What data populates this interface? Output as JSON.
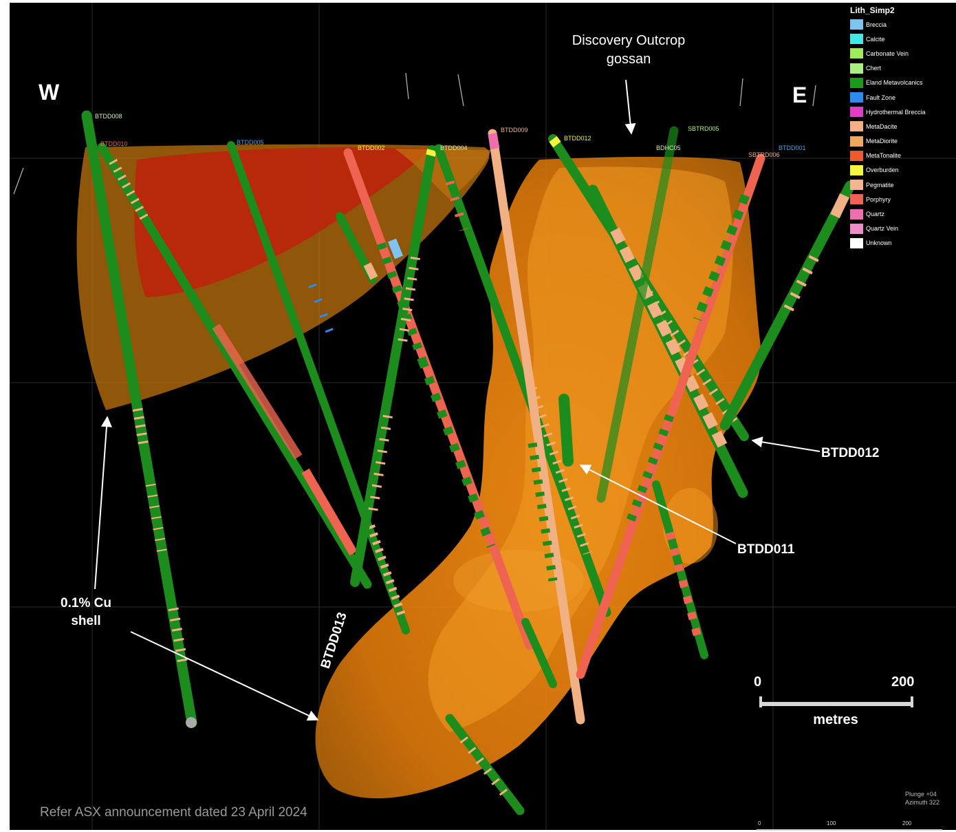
{
  "direction": {
    "west": "W",
    "east": "E"
  },
  "annotations": {
    "outcrop_line1": "Discovery Outcrop",
    "outcrop_line2": "gossan",
    "shell_line1": "0.1% Cu",
    "shell_line2": "shell",
    "btdd011": "BTDD011",
    "btdd012": "BTDD012",
    "btdd013": "BTDD013"
  },
  "drillholes": {
    "btdd008": "BTDD008",
    "btdd010": "BTDD010",
    "btdd005": "BTDD005",
    "btdd002": "BTDD002",
    "btdd004": "BTDD004",
    "btdd009": "BTDD009",
    "btdd012": "BTDD012",
    "sbtrd005": "SBTRD005",
    "btdd001": "BTDD001",
    "sbtrd006": "SBTRD006",
    "bdhc05": "BDHC05"
  },
  "legend": {
    "title": "Lith_Simp2",
    "items": [
      {
        "label": "Breccia",
        "color": "#7fc3f0"
      },
      {
        "label": "Calcite",
        "color": "#45e6e6"
      },
      {
        "label": "Carbonate Vein",
        "color": "#9dea5a"
      },
      {
        "label": "Chert",
        "color": "#a9ef84"
      },
      {
        "label": "Eland Metavolcanics",
        "color": "#1c9a1c"
      },
      {
        "label": "Fault Zone",
        "color": "#2d8bf0"
      },
      {
        "label": "Hydrothermal Breccia",
        "color": "#e33cc9"
      },
      {
        "label": "MetaDacite",
        "color": "#f2b184"
      },
      {
        "label": "MetaDiorite",
        "color": "#eea860"
      },
      {
        "label": "MetaTonalite",
        "color": "#ef5a2c"
      },
      {
        "label": "Overburden",
        "color": "#f4f43c"
      },
      {
        "label": "Pegmatite",
        "color": "#f6b58c"
      },
      {
        "label": "Porphyry",
        "color": "#ee6450"
      },
      {
        "label": "Quartz",
        "color": "#ee6fae"
      },
      {
        "label": "Quartz Vein",
        "color": "#f08ac8"
      },
      {
        "label": "Unknown",
        "color": "#ffffff"
      }
    ]
  },
  "scale": {
    "start": "0",
    "end": "200",
    "unit": "metres"
  },
  "view": {
    "plunge": "Plunge +04",
    "azimuth": "Azimuth 322"
  },
  "mini_scale": {
    "t0": "0",
    "t1": "100",
    "t2": "200"
  },
  "source_note": "Refer ASX announcement dated 23 April 2024"
}
